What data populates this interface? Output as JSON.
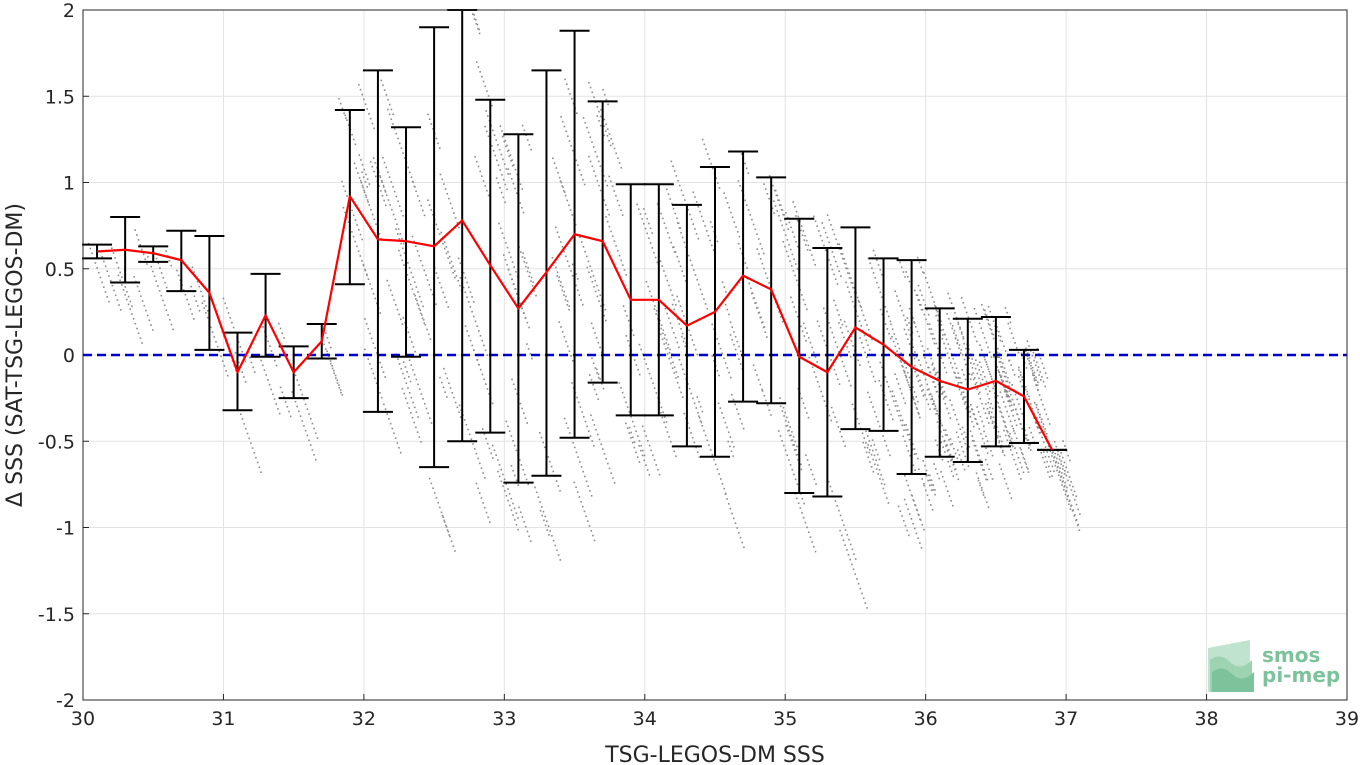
{
  "chart_data": {
    "type": "scatter",
    "xlabel": "TSG-LEGOS-DM SSS",
    "ylabel": "Δ SSS (SAT-TSG-LEGOS-DM)",
    "xlim": [
      30,
      39
    ],
    "ylim": [
      -2,
      2
    ],
    "xticks": [
      30,
      31,
      32,
      33,
      34,
      35,
      36,
      37,
      38,
      39
    ],
    "yticks": [
      -2,
      -1.5,
      -1,
      -0.5,
      0,
      0.5,
      1,
      1.5,
      2
    ],
    "grid": true,
    "reference_line": {
      "y": 0,
      "color": "#0000cc",
      "style": "dashed"
    },
    "series": [
      {
        "type": "errorbar-line",
        "color": "#ff0000",
        "errorbar_color": "#000000",
        "x": [
          30.1,
          30.3,
          30.5,
          30.7,
          30.9,
          31.1,
          31.3,
          31.5,
          31.7,
          31.9,
          32.1,
          32.3,
          32.5,
          32.7,
          32.9,
          33.1,
          33.3,
          33.5,
          33.7,
          33.9,
          34.1,
          34.3,
          34.5,
          34.7,
          34.9,
          35.1,
          35.3,
          35.5,
          35.7,
          35.9,
          36.1,
          36.3,
          36.5,
          36.7,
          36.9
        ],
        "mean": [
          0.6,
          0.61,
          0.59,
          0.55,
          0.36,
          -0.1,
          0.23,
          -0.1,
          0.08,
          0.92,
          0.67,
          0.66,
          0.63,
          0.78,
          0.52,
          0.27,
          0.48,
          0.7,
          0.66,
          0.32,
          0.32,
          0.17,
          0.25,
          0.46,
          0.38,
          -0.01,
          -0.1,
          0.16,
          0.06,
          -0.07,
          -0.15,
          -0.2,
          -0.15,
          -0.24,
          -0.55
        ],
        "lower": [
          0.56,
          0.42,
          0.54,
          0.37,
          0.03,
          -0.32,
          -0.01,
          -0.25,
          -0.02,
          0.41,
          -0.33,
          -0.01,
          -0.65,
          -0.5,
          -0.45,
          -0.74,
          -0.7,
          -0.48,
          -0.16,
          -0.35,
          -0.35,
          -0.53,
          -0.59,
          -0.27,
          -0.28,
          -0.8,
          -0.82,
          -0.43,
          -0.44,
          -0.69,
          -0.59,
          -0.62,
          -0.53,
          -0.51,
          -0.55
        ],
        "upper": [
          0.64,
          0.8,
          0.63,
          0.72,
          0.69,
          0.13,
          0.47,
          0.05,
          0.18,
          1.42,
          1.65,
          1.32,
          1.9,
          2.0,
          1.48,
          1.28,
          1.65,
          1.88,
          1.47,
          0.99,
          0.99,
          0.87,
          1.09,
          1.18,
          1.03,
          0.79,
          0.62,
          0.74,
          0.56,
          0.55,
          0.27,
          0.21,
          0.22,
          0.03,
          -0.55
        ]
      },
      {
        "type": "scatter",
        "color": "#8c8c8c",
        "description": "individual matchup points (dense diagonal streaks)"
      }
    ]
  },
  "logo": {
    "line1": "smos",
    "line2": "pi-mep",
    "color": "#7cc29a"
  }
}
